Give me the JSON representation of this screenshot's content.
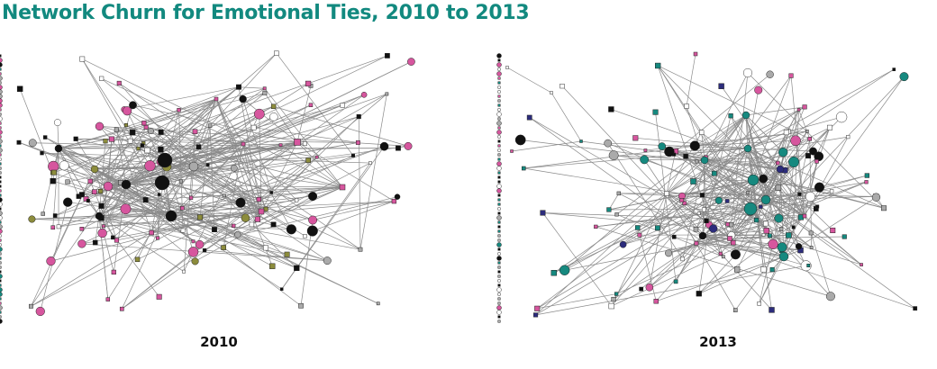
{
  "title": "Network Churn for Emotional Ties, 2010 to 2013",
  "panels": [
    {
      "label": "2010"
    },
    {
      "label": "2013"
    }
  ]
}
